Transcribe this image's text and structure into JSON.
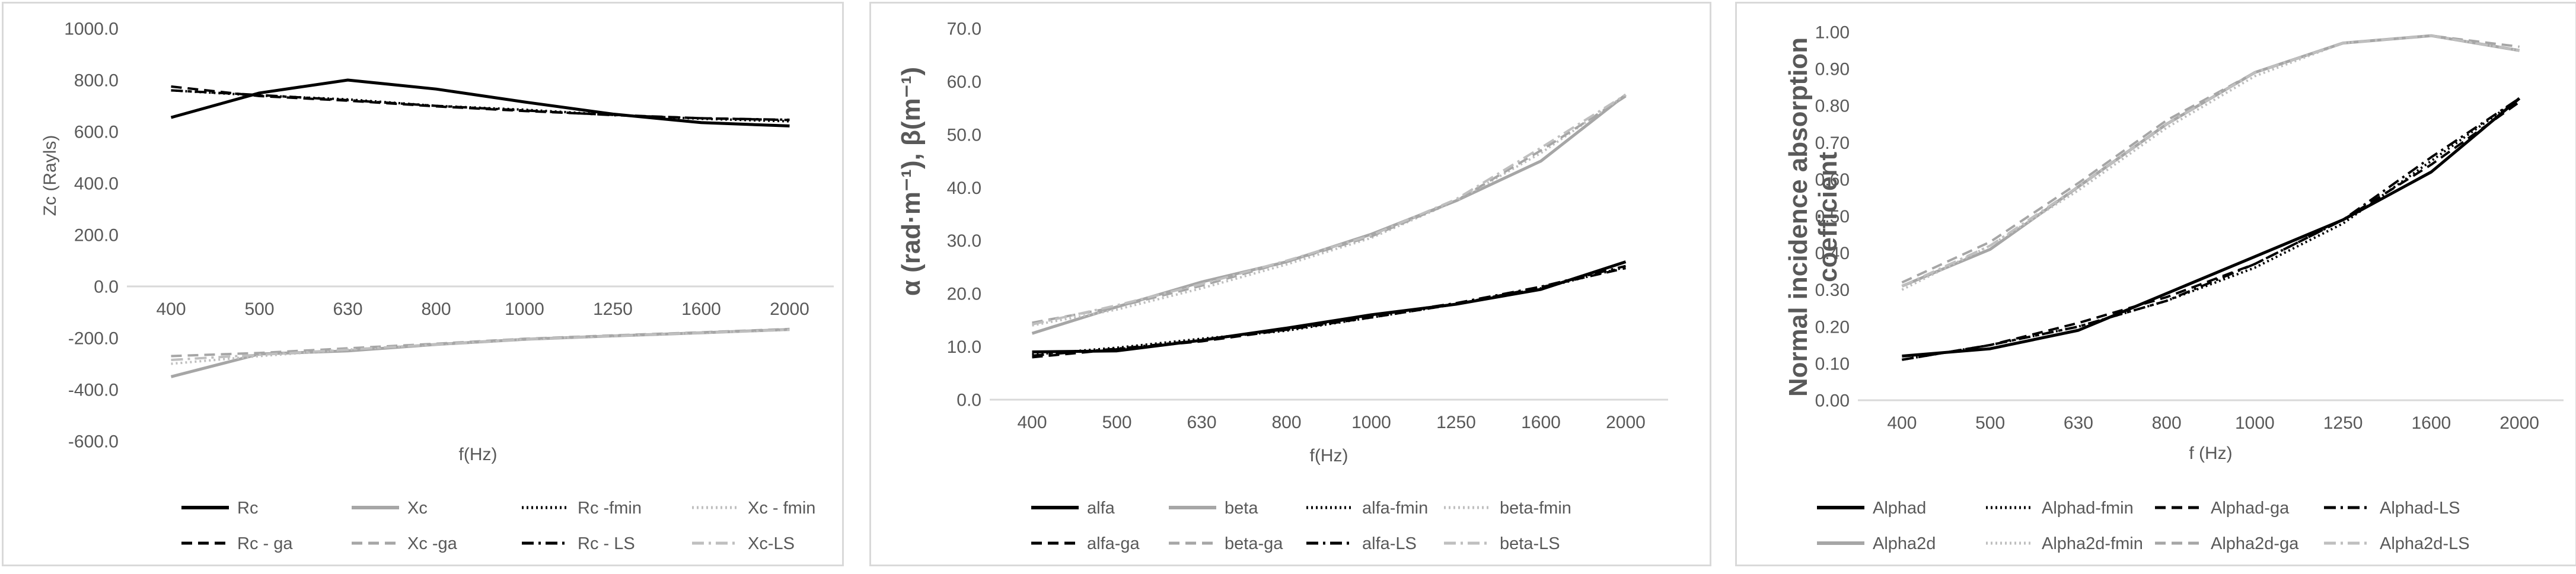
{
  "chart_data": [
    {
      "type": "line",
      "categories": [
        "400",
        "500",
        "630",
        "800",
        "1000",
        "1250",
        "1600",
        "2000"
      ],
      "xlabel": "f(Hz)",
      "ylabel": "Zc (Rayls)",
      "ylim": [
        -600,
        1000
      ],
      "yticks": [
        -600,
        -400,
        -200,
        0,
        200,
        400,
        600,
        800,
        1000
      ],
      "ytick_labels": [
        "-600.0",
        "-400.0",
        "-200.0",
        "0.0",
        "200.0",
        "400.0",
        "600.0",
        "800.0",
        "1000.0"
      ],
      "category_axis_at": 0,
      "grid": false,
      "legend_position": "bottom",
      "series": [
        {
          "name": "Rc",
          "values": [
            655,
            750,
            800,
            765,
            715,
            668,
            635,
            622
          ],
          "color": "#000000",
          "style": "solid"
        },
        {
          "name": "Xc",
          "values": [
            -350,
            -262,
            -250,
            -225,
            -205,
            -192,
            -180,
            -167
          ],
          "color": "#a6a6a6",
          "style": "solid"
        },
        {
          "name": "Rc -fmin",
          "values": [
            760,
            740,
            725,
            700,
            685,
            665,
            650,
            640
          ],
          "color": "#000000",
          "style": "dot"
        },
        {
          "name": "Xc - fmin",
          "values": [
            -300,
            -270,
            -245,
            -225,
            -205,
            -192,
            -180,
            -168
          ],
          "color": "#bfbfbf",
          "style": "dot"
        },
        {
          "name": "Rc - ga",
          "values": [
            775,
            738,
            720,
            698,
            680,
            665,
            652,
            645
          ],
          "color": "#000000",
          "style": "dash"
        },
        {
          "name": "Xc -ga",
          "values": [
            -270,
            -258,
            -240,
            -222,
            -203,
            -190,
            -178,
            -165
          ],
          "color": "#a6a6a6",
          "style": "dash"
        },
        {
          "name": "Rc - LS",
          "values": [
            760,
            742,
            722,
            700,
            682,
            664,
            652,
            646
          ],
          "color": "#000000",
          "style": "dashdot"
        },
        {
          "name": "Xc-LS",
          "values": [
            -285,
            -265,
            -245,
            -225,
            -205,
            -192,
            -180,
            -168
          ],
          "color": "#bfbfbf",
          "style": "dashdot"
        }
      ]
    },
    {
      "type": "line",
      "categories": [
        "400",
        "500",
        "630",
        "800",
        "1000",
        "1250",
        "1600",
        "2000"
      ],
      "xlabel": "f(Hz)",
      "ylabel": "α (rad·m⁻¹), β(m⁻¹)",
      "ylim": [
        0,
        70
      ],
      "yticks": [
        0,
        10,
        20,
        30,
        40,
        50,
        60,
        70
      ],
      "ytick_labels": [
        "0.0",
        "10.0",
        "20.0",
        "30.0",
        "40.0",
        "50.0",
        "60.0",
        "70.0"
      ],
      "category_axis_at": 0,
      "grid": false,
      "legend_position": "bottom",
      "series": [
        {
          "name": "alfa",
          "values": [
            9.0,
            9.2,
            11.2,
            13.5,
            16.0,
            18.0,
            20.8,
            26.0
          ],
          "color": "#000000",
          "style": "solid"
        },
        {
          "name": "beta",
          "values": [
            12.5,
            17.5,
            22.2,
            26.0,
            31.2,
            37.5,
            45.0,
            57.5
          ],
          "color": "#a6a6a6",
          "style": "solid"
        },
        {
          "name": "alfa-fmin",
          "values": [
            8.5,
            9.8,
            11.5,
            13.0,
            15.5,
            18.0,
            21.0,
            25.0
          ],
          "color": "#000000",
          "style": "dot"
        },
        {
          "name": "beta-fmin",
          "values": [
            14.0,
            17.0,
            21.0,
            25.5,
            30.5,
            37.5,
            46.5,
            57.5
          ],
          "color": "#bfbfbf",
          "style": "dot"
        },
        {
          "name": "alfa-ga",
          "values": [
            8.0,
            9.5,
            11.0,
            13.2,
            15.5,
            18.0,
            21.2,
            24.8
          ],
          "color": "#000000",
          "style": "dash"
        },
        {
          "name": "beta-ga",
          "values": [
            14.5,
            17.5,
            21.5,
            26.0,
            30.8,
            37.5,
            47.0,
            57.2
          ],
          "color": "#a6a6a6",
          "style": "dash"
        },
        {
          "name": "alfa-LS",
          "values": [
            8.3,
            9.6,
            11.2,
            13.3,
            15.8,
            18.2,
            21.3,
            25.2
          ],
          "color": "#000000",
          "style": "dashdot"
        },
        {
          "name": "beta-LS",
          "values": [
            14.2,
            17.8,
            21.8,
            26.2,
            31.0,
            37.8,
            47.5,
            57.5
          ],
          "color": "#bfbfbf",
          "style": "dashdot"
        }
      ]
    },
    {
      "type": "line",
      "categories": [
        "400",
        "500",
        "630",
        "800",
        "1000",
        "1250",
        "1600",
        "2000"
      ],
      "xlabel": "f (Hz)",
      "ylabel": "Normal incidence absorption coefficient",
      "ylim": [
        0,
        1
      ],
      "yticks": [
        0,
        0.1,
        0.2,
        0.3,
        0.4,
        0.5,
        0.6,
        0.7,
        0.8,
        0.9,
        1.0
      ],
      "ytick_labels": [
        "0.00",
        "0.10",
        "0.20",
        "0.30",
        "0.40",
        "0.50",
        "0.60",
        "0.70",
        "0.80",
        "0.90",
        "1.00"
      ],
      "category_axis_at": 0,
      "grid": false,
      "legend_position": "bottom",
      "series": [
        {
          "name": "Alphad",
          "values": [
            0.12,
            0.14,
            0.19,
            0.29,
            0.39,
            0.49,
            0.62,
            0.82
          ],
          "color": "#000000",
          "style": "solid"
        },
        {
          "name": "Alphad-fmin",
          "values": [
            0.11,
            0.15,
            0.2,
            0.27,
            0.36,
            0.48,
            0.65,
            0.82
          ],
          "color": "#000000",
          "style": "dot"
        },
        {
          "name": "Alphad-ga",
          "values": [
            0.11,
            0.15,
            0.21,
            0.28,
            0.37,
            0.49,
            0.64,
            0.81
          ],
          "color": "#000000",
          "style": "dash"
        },
        {
          "name": "Alphad-LS",
          "values": [
            0.11,
            0.15,
            0.2,
            0.27,
            0.37,
            0.49,
            0.66,
            0.82
          ],
          "color": "#000000",
          "style": "dashdot"
        },
        {
          "name": "Alpha2d",
          "values": [
            0.31,
            0.41,
            0.58,
            0.75,
            0.89,
            0.97,
            0.99,
            0.95
          ],
          "color": "#a6a6a6",
          "style": "solid"
        },
        {
          "name": "Alpha2d-fmin",
          "values": [
            0.3,
            0.42,
            0.57,
            0.74,
            0.88,
            0.97,
            0.99,
            0.95
          ],
          "color": "#bfbfbf",
          "style": "dot"
        },
        {
          "name": "Alpha2d-ga",
          "values": [
            0.32,
            0.43,
            0.59,
            0.76,
            0.89,
            0.97,
            0.99,
            0.96
          ],
          "color": "#a6a6a6",
          "style": "dash"
        },
        {
          "name": "Alpha2d-LS",
          "values": [
            0.31,
            0.42,
            0.58,
            0.75,
            0.89,
            0.97,
            0.99,
            0.95
          ],
          "color": "#bfbfbf",
          "style": "dashdot"
        }
      ]
    }
  ]
}
